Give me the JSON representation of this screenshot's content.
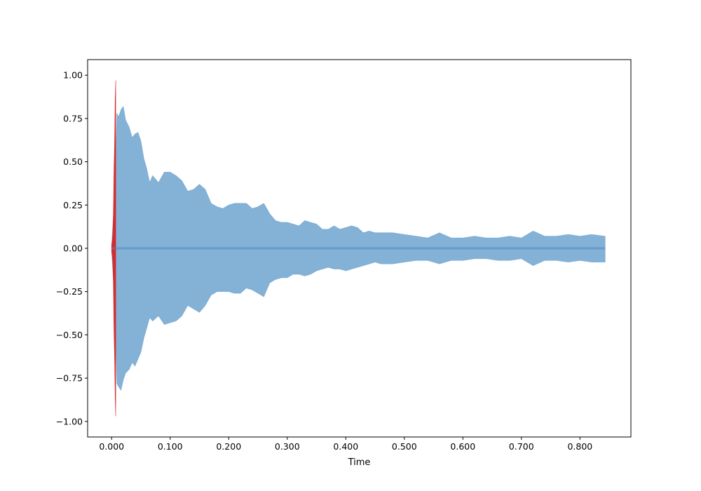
{
  "chart_data": {
    "type": "area",
    "title": "",
    "xlabel": "Time",
    "ylabel": "",
    "xlim": [
      -0.041,
      0.887
    ],
    "ylim": [
      -1.09,
      1.09
    ],
    "x_ticks": [
      {
        "value": 0.0,
        "label": "0.000"
      },
      {
        "value": 0.1,
        "label": "0.100"
      },
      {
        "value": 0.2,
        "label": "0.200"
      },
      {
        "value": 0.3,
        "label": "0.300"
      },
      {
        "value": 0.4,
        "label": "0.400"
      },
      {
        "value": 0.5,
        "label": "0.500"
      },
      {
        "value": 0.6,
        "label": "0.600"
      },
      {
        "value": 0.7,
        "label": "0.700"
      },
      {
        "value": 0.8,
        "label": "0.800"
      }
    ],
    "y_ticks": [
      {
        "value": 1.0,
        "label": "1.00"
      },
      {
        "value": 0.75,
        "label": "0.75"
      },
      {
        "value": 0.5,
        "label": "0.50"
      },
      {
        "value": 0.25,
        "label": "0.25"
      },
      {
        "value": 0.0,
        "label": "0.00"
      },
      {
        "value": -0.25,
        "label": "−0.25"
      },
      {
        "value": -0.5,
        "label": "−0.50"
      },
      {
        "value": -0.75,
        "label": "−0.75"
      },
      {
        "value": -1.0,
        "label": "−1.00"
      }
    ],
    "grid": false,
    "legend": false,
    "series": [
      {
        "kind": "envelope",
        "color": "#6ea3cf",
        "opacity": 0.85,
        "x": [
          0.0,
          0.006,
          0.009,
          0.012,
          0.016,
          0.02,
          0.024,
          0.03,
          0.035,
          0.04,
          0.045,
          0.05,
          0.055,
          0.06,
          0.065,
          0.07,
          0.08,
          0.09,
          0.1,
          0.11,
          0.12,
          0.13,
          0.14,
          0.15,
          0.16,
          0.17,
          0.18,
          0.19,
          0.2,
          0.21,
          0.22,
          0.23,
          0.24,
          0.25,
          0.26,
          0.27,
          0.28,
          0.29,
          0.3,
          0.31,
          0.32,
          0.33,
          0.34,
          0.35,
          0.36,
          0.37,
          0.38,
          0.39,
          0.4,
          0.41,
          0.42,
          0.43,
          0.44,
          0.45,
          0.46,
          0.48,
          0.5,
          0.52,
          0.54,
          0.56,
          0.58,
          0.6,
          0.62,
          0.64,
          0.66,
          0.68,
          0.7,
          0.72,
          0.74,
          0.76,
          0.78,
          0.8,
          0.82,
          0.843
        ],
        "upper": [
          0.02,
          0.35,
          0.78,
          0.76,
          0.8,
          0.82,
          0.74,
          0.7,
          0.64,
          0.66,
          0.67,
          0.62,
          0.52,
          0.46,
          0.38,
          0.42,
          0.38,
          0.44,
          0.44,
          0.42,
          0.39,
          0.33,
          0.34,
          0.37,
          0.34,
          0.26,
          0.24,
          0.23,
          0.25,
          0.26,
          0.26,
          0.26,
          0.23,
          0.24,
          0.26,
          0.2,
          0.16,
          0.15,
          0.15,
          0.14,
          0.13,
          0.16,
          0.15,
          0.14,
          0.11,
          0.11,
          0.13,
          0.11,
          0.12,
          0.13,
          0.12,
          0.09,
          0.1,
          0.09,
          0.09,
          0.09,
          0.08,
          0.07,
          0.06,
          0.09,
          0.06,
          0.06,
          0.07,
          0.06,
          0.06,
          0.07,
          0.06,
          0.1,
          0.07,
          0.07,
          0.08,
          0.07,
          0.08,
          0.07
        ],
        "lower": [
          -0.02,
          -0.35,
          -0.78,
          -0.8,
          -0.82,
          -0.76,
          -0.72,
          -0.7,
          -0.66,
          -0.68,
          -0.64,
          -0.6,
          -0.52,
          -0.46,
          -0.4,
          -0.42,
          -0.39,
          -0.44,
          -0.43,
          -0.42,
          -0.39,
          -0.33,
          -0.35,
          -0.37,
          -0.33,
          -0.27,
          -0.25,
          -0.25,
          -0.25,
          -0.26,
          -0.26,
          -0.23,
          -0.24,
          -0.26,
          -0.28,
          -0.2,
          -0.18,
          -0.17,
          -0.17,
          -0.15,
          -0.15,
          -0.16,
          -0.15,
          -0.13,
          -0.12,
          -0.11,
          -0.12,
          -0.12,
          -0.13,
          -0.12,
          -0.11,
          -0.1,
          -0.09,
          -0.08,
          -0.09,
          -0.09,
          -0.08,
          -0.07,
          -0.07,
          -0.09,
          -0.07,
          -0.07,
          -0.06,
          -0.06,
          -0.07,
          -0.07,
          -0.06,
          -0.1,
          -0.07,
          -0.07,
          -0.08,
          -0.07,
          -0.08,
          -0.08
        ]
      },
      {
        "kind": "envelope",
        "color": "#d62728",
        "opacity": 0.95,
        "x": [
          0.0,
          0.001,
          0.002,
          0.003,
          0.004,
          0.005,
          0.006,
          0.007
        ],
        "upper": [
          0.02,
          0.04,
          0.08,
          0.2,
          0.45,
          0.6,
          0.85,
          0.97
        ],
        "lower": [
          -0.02,
          -0.04,
          -0.08,
          -0.2,
          -0.48,
          -0.62,
          -0.85,
          -0.97
        ]
      }
    ]
  }
}
